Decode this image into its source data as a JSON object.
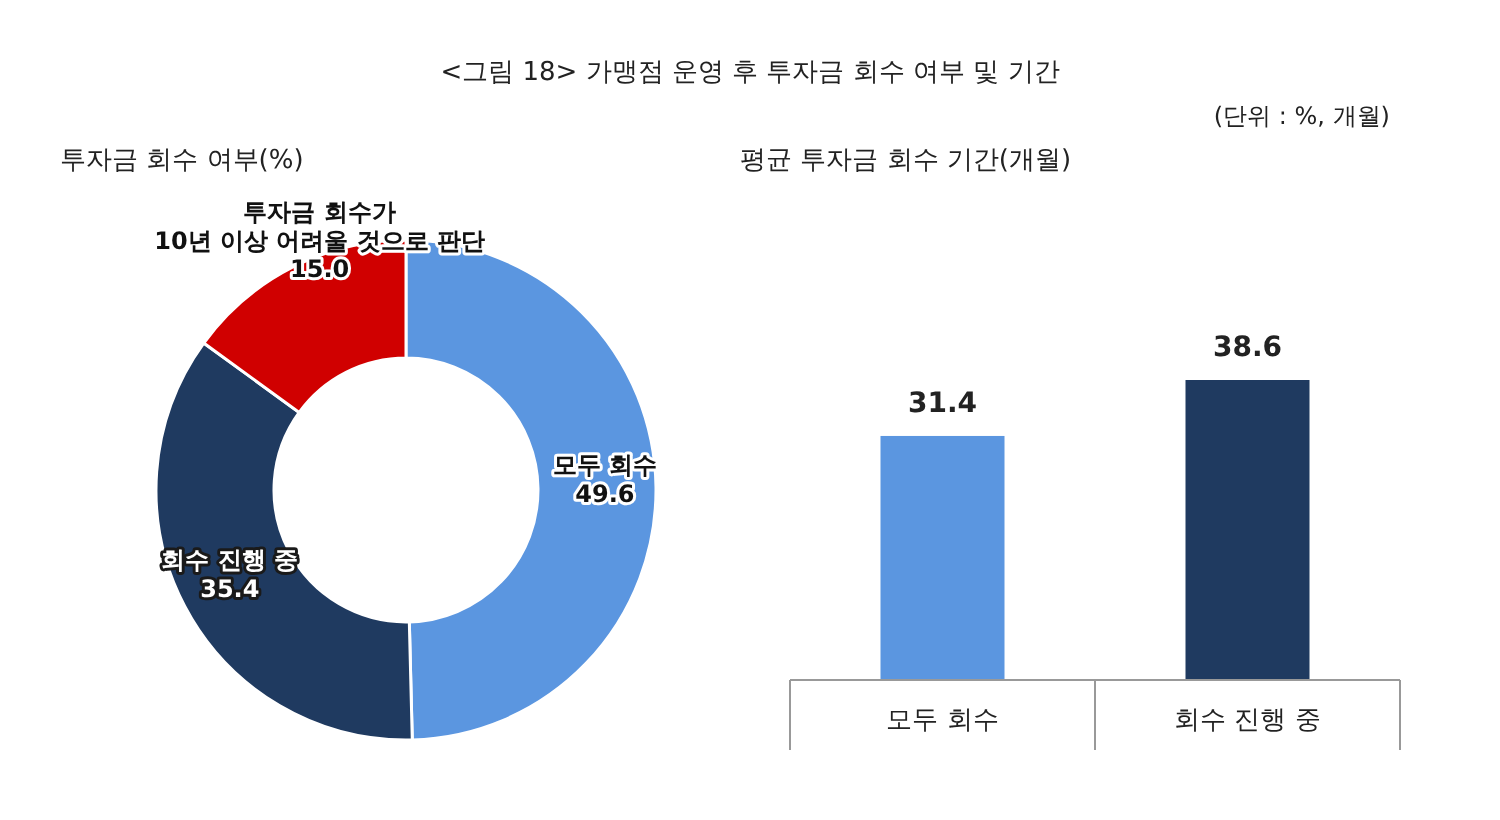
{
  "chart_data": [
    {
      "type": "donut",
      "title": "투자금 회수 여부(%)",
      "annotations": [
        "<그림 18> 가맹점 운영 후 투자금 회수 여부 및 기간",
        "(단위 : %, 개월)"
      ],
      "categories": [
        "모두 회수",
        "회수 진행 중",
        "투자금 회수가\n10년 이상 어려울 것으로 판단"
      ],
      "values": [
        49.6,
        35.4,
        15.0
      ],
      "value_labels": [
        "49.6",
        "35.4",
        "15.0"
      ],
      "colors": [
        "#5b96e0",
        "#1f3a60",
        "#d00000"
      ]
    },
    {
      "type": "bar",
      "title": "평균 투자금 회수 기간(개월)",
      "categories": [
        "모두 회수",
        "회수 진행 중"
      ],
      "values": [
        31.4,
        38.6
      ],
      "colors": [
        "#5b96e0",
        "#1f3a60"
      ],
      "data_labels": true
    }
  ]
}
